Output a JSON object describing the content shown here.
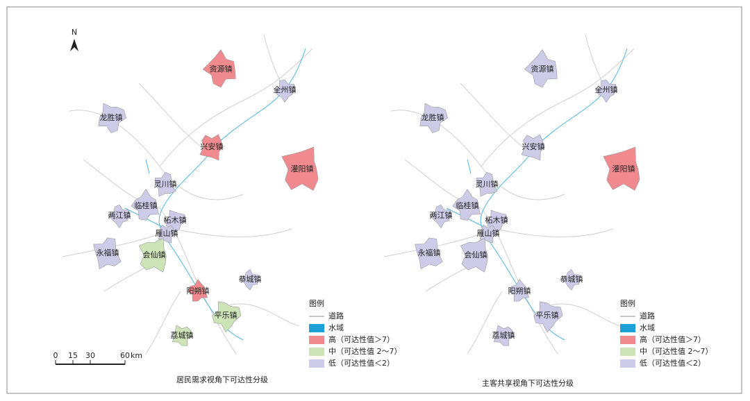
{
  "north": "N",
  "scale_bar": {
    "ticks": [
      0,
      15,
      30,
      60
    ],
    "unit": "km"
  },
  "legend": {
    "title": "图例",
    "items": [
      {
        "label": "道路",
        "color": "#c8c8c8"
      },
      {
        "label": "水域",
        "color": "#1ba1d8"
      },
      {
        "label": "高（可达性值＞7）",
        "color": "#f08a8f"
      },
      {
        "label": "中（可达性值 2～7）",
        "color": "#cde3b8"
      },
      {
        "label": "低（可达性值＜2）",
        "color": "#cccbe8"
      }
    ]
  },
  "maps": [
    {
      "caption": "居民需求视角下可达性分级",
      "towns": [
        {
          "name": "资源镇",
          "color": "#f08a8f"
        },
        {
          "name": "全州镇",
          "color": "#cccbe8"
        },
        {
          "name": "龙胜镇",
          "color": "#cccbe8"
        },
        {
          "name": "兴安镇",
          "color": "#f08a8f"
        },
        {
          "name": "灌阳镇",
          "color": "#f08a8f"
        },
        {
          "name": "灵川镇",
          "color": "#cccbe8"
        },
        {
          "name": "临桂镇",
          "color": "#cccbe8"
        },
        {
          "name": "两江镇",
          "color": "#cccbe8"
        },
        {
          "name": "柘木镇",
          "color": "#cccbe8"
        },
        {
          "name": "雁山镇",
          "color": "#cccbe8"
        },
        {
          "name": "会仙镇",
          "color": "#cde3b8"
        },
        {
          "name": "永福镇",
          "color": "#cccbe8"
        },
        {
          "name": "阳朔镇",
          "color": "#f08a8f"
        },
        {
          "name": "恭城镇",
          "color": "#cccbe8"
        },
        {
          "name": "平乐镇",
          "color": "#cde3b8"
        },
        {
          "name": "荔城镇",
          "color": "#cde3b8"
        }
      ]
    },
    {
      "caption": "主客共享视角下可达性分级",
      "towns": [
        {
          "name": "资源镇",
          "color": "#cccbe8"
        },
        {
          "name": "全州镇",
          "color": "#cccbe8"
        },
        {
          "name": "龙胜镇",
          "color": "#cccbe8"
        },
        {
          "name": "兴安镇",
          "color": "#cccbe8"
        },
        {
          "name": "灌阳镇",
          "color": "#f08a8f"
        },
        {
          "name": "灵川镇",
          "color": "#cccbe8"
        },
        {
          "name": "临桂镇",
          "color": "#cccbe8"
        },
        {
          "name": "两江镇",
          "color": "#cccbe8"
        },
        {
          "name": "柘木镇",
          "color": "#cccbe8"
        },
        {
          "name": "雁山镇",
          "color": "#cccbe8"
        },
        {
          "name": "会仙镇",
          "color": "#cccbe8"
        },
        {
          "name": "永福镇",
          "color": "#cccbe8"
        },
        {
          "name": "阳朔镇",
          "color": "#cccbe8"
        },
        {
          "name": "恭城镇",
          "color": "#cccbe8"
        },
        {
          "name": "平乐镇",
          "color": "#cccbe8"
        },
        {
          "name": "荔城镇",
          "color": "#cccbe8"
        }
      ]
    }
  ]
}
